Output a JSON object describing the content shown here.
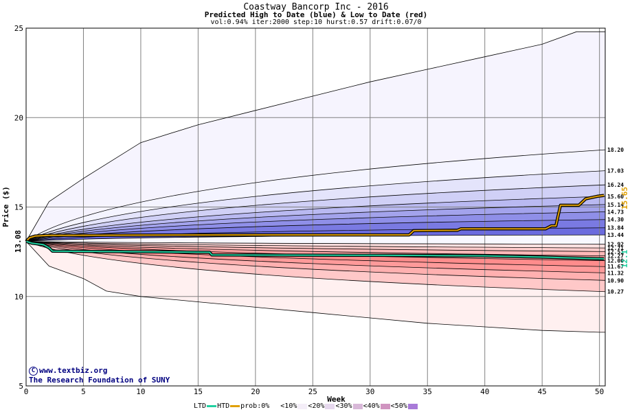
{
  "chart_data": {
    "type": "area",
    "title": "Coastway Bancorp Inc - 2016",
    "subtitle": "Predicted High to Date (blue) &  Low to Date (red)",
    "params": "vol:0.94% iter:2000 step:10 hurst:0.57 drift:0.07/0",
    "xlabel": "Week",
    "ylabel": "Price ($)",
    "xlim": [
      0,
      50.5
    ],
    "ylim": [
      5,
      25
    ],
    "x_ticks": [
      0,
      5,
      10,
      15,
      20,
      25,
      30,
      35,
      40,
      45,
      50
    ],
    "y_ticks": [
      5,
      10,
      15,
      20,
      25
    ],
    "grid": true,
    "start_price": 13.08,
    "start_label": "13.08",
    "htd_end_label": "15.65",
    "ltd_end_label": "12.1",
    "high_quantiles": [
      {
        "label": "18.20",
        "end": 18.2,
        "ctrl": 16.4,
        "fill": "#f4f4ff"
      },
      {
        "label": "17.03",
        "end": 17.03,
        "ctrl": 15.6,
        "fill": "#e4e4fb"
      },
      {
        "label": "16.24",
        "end": 16.24,
        "ctrl": 15.1,
        "fill": "#d0d0f6"
      },
      {
        "label": "15.60",
        "end": 15.6,
        "ctrl": 14.7,
        "fill": "#b9b9f1"
      },
      {
        "label": "15.14",
        "end": 15.14,
        "ctrl": 14.45,
        "fill": "#a3a3ec"
      },
      {
        "label": "14.73",
        "end": 14.73,
        "ctrl": 14.2,
        "fill": "#8f8fe8"
      },
      {
        "label": "14.30",
        "end": 14.3,
        "ctrl": 13.95,
        "fill": "#7a7ae2"
      },
      {
        "label": "13.84",
        "end": 13.84,
        "ctrl": 13.65,
        "fill": "#6b6bde"
      },
      {
        "label": "13.44",
        "end": 13.44,
        "ctrl": 13.4,
        "fill": "#9a9af0"
      }
    ],
    "low_quantiles": [
      {
        "label": "12.92",
        "end": 12.92,
        "ctrl": 12.98,
        "fill": "#ffe0e0"
      },
      {
        "label": "12.71",
        "end": 12.71,
        "ctrl": 12.86,
        "fill": "#ffcccc"
      },
      {
        "label": "12.51",
        "end": 12.51,
        "ctrl": 12.74,
        "fill": "#ffb8b8"
      },
      {
        "label": "12.27",
        "end": 12.27,
        "ctrl": 12.6,
        "fill": "#ffa4a4"
      },
      {
        "label": "12.00",
        "end": 12.0,
        "ctrl": 12.45,
        "fill": "#ff8c8c"
      },
      {
        "label": "11.67",
        "end": 11.67,
        "ctrl": 12.25,
        "fill": "#ff9a9a"
      },
      {
        "label": "11.32",
        "end": 11.32,
        "ctrl": 12.0,
        "fill": "#ffb0b0"
      },
      {
        "label": "10.90",
        "end": 10.9,
        "ctrl": 11.7,
        "fill": "#ffc8c8"
      },
      {
        "label": "10.27",
        "end": 10.27,
        "ctrl": 11.2,
        "fill": "#ffe4e4"
      }
    ],
    "outer_high": {
      "x": [
        0,
        2,
        5,
        10,
        15,
        20,
        25,
        30,
        35,
        40,
        45,
        48,
        50.5
      ],
      "y": [
        13.08,
        15.3,
        16.6,
        18.6,
        19.6,
        20.4,
        21.2,
        22.0,
        22.7,
        23.4,
        24.1,
        24.8,
        24.8
      ]
    },
    "outer_low": {
      "x": [
        0,
        2,
        5,
        7,
        10,
        15,
        20,
        25,
        30,
        35,
        40,
        45,
        50,
        50.5
      ],
      "y": [
        13.08,
        11.7,
        11.0,
        10.3,
        10.0,
        9.7,
        9.4,
        9.1,
        8.8,
        8.5,
        8.3,
        8.1,
        8.0,
        8.0
      ]
    },
    "htd": {
      "name": "HTD",
      "color": "#e0a000",
      "x": [
        0,
        0.3,
        0.8,
        2,
        10,
        20,
        33.4,
        33.8,
        37.6,
        37.9,
        45.3,
        45.8,
        46.2,
        46.6,
        48.2,
        48.8,
        49.8,
        50.4
      ],
      "y": [
        13.08,
        13.28,
        13.38,
        13.42,
        13.43,
        13.44,
        13.44,
        13.68,
        13.7,
        13.78,
        13.78,
        13.95,
        13.95,
        15.1,
        15.1,
        15.46,
        15.6,
        15.65
      ]
    },
    "ltd": {
      "name": "LTD",
      "color": "#20d0a0",
      "x": [
        0,
        0.5,
        1.5,
        2.0,
        2.3,
        10,
        16,
        16.2,
        30,
        40,
        45,
        50.4
      ],
      "y": [
        13.08,
        12.98,
        12.9,
        12.72,
        12.53,
        12.5,
        12.47,
        12.32,
        12.3,
        12.27,
        12.2,
        12.1
      ]
    }
  },
  "credit": {
    "copyright_symbol": "C",
    "line1": "www.textbiz.org",
    "line2": "The Research Foundation of SUNY"
  },
  "legend": {
    "ltd": "LTD",
    "htd": "HTD",
    "prob": "prob:0%",
    "b1": "<10%",
    "b2": "<20%",
    "b3": "<30%",
    "b4": "<40%",
    "b5": "<50%"
  }
}
